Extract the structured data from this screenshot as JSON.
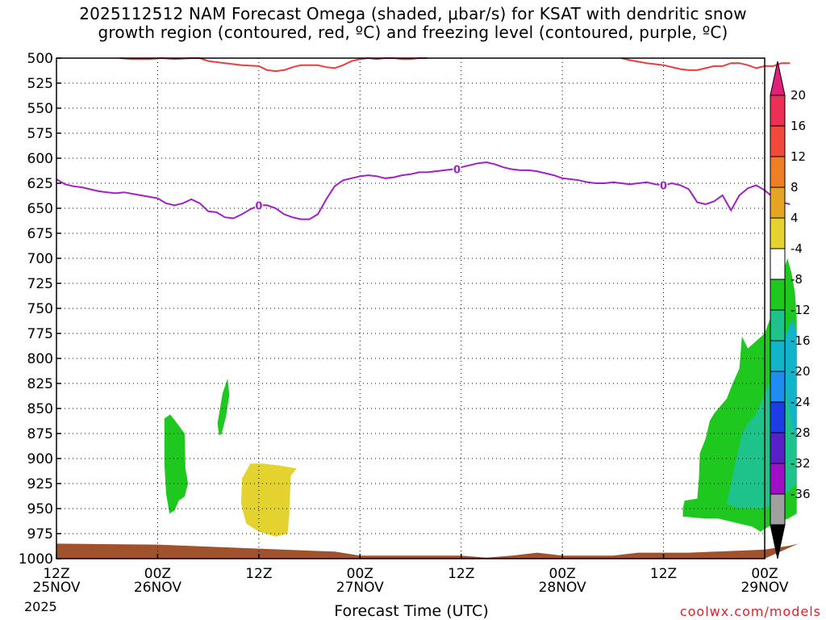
{
  "title_line1": "2025112512 NAM Forecast Omega (shaded, μbar/s) for KSAT with dendritic snow",
  "title_line2": "growth region (contoured, red, ºC) and freezing level (contoured, purple, ºC)",
  "credit": "coolwx.com/models",
  "chart_data": {
    "type": "time-height",
    "xlabel": "Forecast Time (UTC)",
    "x_ticks": [
      {
        "hour": 0,
        "line1": "12Z",
        "line2": "25NOV",
        "line3": "2025"
      },
      {
        "hour": 12,
        "line1": "00Z",
        "line2": "26NOV"
      },
      {
        "hour": 24,
        "line1": "12Z",
        "line2": ""
      },
      {
        "hour": 36,
        "line1": "00Z",
        "line2": "27NOV"
      },
      {
        "hour": 48,
        "line1": "12Z",
        "line2": ""
      },
      {
        "hour": 60,
        "line1": "00Z",
        "line2": "28NOV"
      },
      {
        "hour": 72,
        "line1": "12Z",
        "line2": ""
      },
      {
        "hour": 84,
        "line1": "00Z",
        "line2": "29NOV"
      }
    ],
    "y_ticks": [
      500,
      525,
      550,
      575,
      600,
      625,
      650,
      675,
      700,
      725,
      750,
      775,
      800,
      825,
      850,
      875,
      900,
      925,
      950,
      975,
      1000
    ],
    "ylim": [
      500,
      1000
    ],
    "colorbar": {
      "labels": [
        "20",
        "16",
        "12",
        "8",
        "4",
        "-4",
        "-8",
        "-12",
        "-16",
        "-20",
        "-24",
        "-28",
        "-32",
        "-36"
      ],
      "colors": [
        "#ec2f55",
        "#f04a3a",
        "#ee7f25",
        "#e6a425",
        "#e4d22e",
        "#ffffff",
        "#1ec81e",
        "#1ec38c",
        "#11b4c8",
        "#1e8cf0",
        "#1e3ce6",
        "#5a20c8",
        "#9f0fc8",
        "#a0a0a0"
      ],
      "top_color": "#e0207a",
      "bottom_color": "#000000"
    },
    "freezing_level": {
      "color": "#a020c8",
      "label": "0",
      "points": [
        [
          0,
          621
        ],
        [
          1,
          626
        ],
        [
          2,
          628
        ],
        [
          3,
          629
        ],
        [
          5,
          633
        ],
        [
          7,
          635
        ],
        [
          8,
          634
        ],
        [
          10,
          637
        ],
        [
          12,
          640
        ],
        [
          13,
          645
        ],
        [
          14,
          647
        ],
        [
          15,
          645
        ],
        [
          16,
          641
        ],
        [
          17,
          645
        ],
        [
          18,
          653
        ],
        [
          19,
          654
        ],
        [
          20,
          659
        ],
        [
          21,
          660
        ],
        [
          22,
          656
        ],
        [
          23,
          651
        ],
        [
          24,
          647
        ],
        [
          25,
          647
        ],
        [
          26,
          650
        ],
        [
          27,
          656
        ],
        [
          28,
          659
        ],
        [
          29,
          661
        ],
        [
          30,
          661
        ],
        [
          31,
          656
        ],
        [
          32,
          641
        ],
        [
          33,
          628
        ],
        [
          34,
          622
        ],
        [
          36,
          618
        ],
        [
          37,
          617
        ],
        [
          38,
          618
        ],
        [
          39,
          620
        ],
        [
          40,
          619
        ],
        [
          41,
          617
        ],
        [
          42,
          616
        ],
        [
          43,
          614
        ],
        [
          44,
          614
        ],
        [
          45,
          613
        ],
        [
          46,
          612
        ],
        [
          47,
          611
        ],
        [
          48,
          609
        ],
        [
          49,
          607
        ],
        [
          50,
          605
        ],
        [
          51,
          604
        ],
        [
          52,
          606
        ],
        [
          53,
          609
        ],
        [
          54,
          611
        ],
        [
          55,
          612
        ],
        [
          56,
          612
        ],
        [
          57,
          613
        ],
        [
          58,
          615
        ],
        [
          59,
          617
        ],
        [
          60,
          620
        ],
        [
          61,
          621
        ],
        [
          62,
          622
        ],
        [
          63,
          624
        ],
        [
          64,
          625
        ],
        [
          65,
          625
        ],
        [
          66,
          624
        ],
        [
          67,
          625
        ],
        [
          68,
          626
        ],
        [
          69,
          625
        ],
        [
          70,
          624
        ],
        [
          71,
          626
        ],
        [
          72,
          627
        ],
        [
          73,
          625
        ],
        [
          74,
          627
        ],
        [
          75,
          631
        ],
        [
          76,
          644
        ],
        [
          77,
          646
        ],
        [
          78,
          643
        ],
        [
          79,
          637
        ],
        [
          80,
          652
        ],
        [
          81,
          637
        ],
        [
          82,
          630
        ],
        [
          83,
          627
        ],
        [
          84,
          632
        ],
        [
          85,
          639
        ],
        [
          86,
          644
        ],
        [
          87,
          646
        ]
      ]
    },
    "dgz_contour": {
      "color": "#ef3b3b",
      "points": [
        [
          7.5,
          500
        ],
        [
          9,
          501
        ],
        [
          11,
          501
        ],
        [
          12.5,
          500
        ],
        [
          14,
          501
        ],
        [
          16,
          500
        ],
        [
          17,
          500
        ],
        [
          18,
          503
        ],
        [
          20,
          505
        ],
        [
          22,
          507
        ],
        [
          24,
          508
        ],
        [
          25,
          512
        ],
        [
          26,
          513
        ],
        [
          27,
          512
        ],
        [
          28,
          509
        ],
        [
          29,
          507
        ],
        [
          31,
          507
        ],
        [
          32,
          509
        ],
        [
          33,
          510
        ],
        [
          34,
          507
        ],
        [
          35,
          503
        ],
        [
          36,
          501
        ],
        [
          37,
          500
        ],
        [
          38,
          501
        ],
        [
          39,
          500
        ],
        [
          40,
          500
        ],
        [
          41,
          501
        ],
        [
          42,
          501
        ],
        [
          43,
          500
        ],
        [
          44,
          500
        ]
      ]
    },
    "dgz_contour2": {
      "points": [
        [
          67,
          500
        ],
        [
          68,
          502
        ],
        [
          70,
          505
        ],
        [
          72,
          507
        ],
        [
          74,
          511
        ],
        [
          75,
          512
        ],
        [
          76,
          512
        ],
        [
          77,
          510
        ],
        [
          78,
          508
        ],
        [
          79,
          508
        ],
        [
          80,
          505
        ],
        [
          81,
          505
        ],
        [
          82,
          507
        ],
        [
          83,
          510
        ],
        [
          84,
          508
        ],
        [
          85,
          508
        ],
        [
          86,
          505
        ],
        [
          87,
          505
        ]
      ]
    },
    "omega_regions": [
      {
        "value_class": "-4 to -8",
        "color": "#1ec81e",
        "points": [
          [
            12.8,
            860
          ],
          [
            13.5,
            856
          ],
          [
            14.5,
            867
          ],
          [
            15.2,
            875
          ],
          [
            15.3,
            910
          ],
          [
            15.6,
            925
          ],
          [
            15.2,
            938
          ],
          [
            14.5,
            942
          ],
          [
            14,
            952
          ],
          [
            13.4,
            955
          ],
          [
            13,
            935
          ],
          [
            12.8,
            905
          ]
        ]
      },
      {
        "value_class": "-4 to -8",
        "color": "#1ec81e",
        "points": [
          [
            19.7,
            835
          ],
          [
            20.3,
            820
          ],
          [
            20.5,
            837
          ],
          [
            20.1,
            858
          ],
          [
            19.6,
            875
          ],
          [
            19.3,
            877
          ],
          [
            19.1,
            865
          ]
        ]
      },
      {
        "value_class": "4 to 8",
        "color": "#e4d22e",
        "points": [
          [
            22,
            920
          ],
          [
            23,
            905
          ],
          [
            24.5,
            905
          ],
          [
            26.5,
            907
          ],
          [
            28.5,
            910
          ],
          [
            27.8,
            917
          ],
          [
            27.6,
            958
          ],
          [
            27.4,
            975
          ],
          [
            26,
            978
          ],
          [
            24,
            973
          ],
          [
            22.5,
            965
          ],
          [
            21.9,
            945
          ]
        ]
      },
      {
        "value_class": "-4 to -8",
        "color": "#1ec81e",
        "points": [
          [
            74.3,
            950
          ],
          [
            74.5,
            942
          ],
          [
            76,
            940
          ],
          [
            76.2,
            920
          ],
          [
            76.3,
            895
          ],
          [
            77,
            880
          ],
          [
            77.5,
            862
          ],
          [
            78,
            855
          ],
          [
            79.5,
            840
          ],
          [
            80.2,
            825
          ],
          [
            81,
            810
          ],
          [
            81.3,
            778
          ],
          [
            82,
            790
          ],
          [
            84,
            775
          ],
          [
            85,
            752
          ],
          [
            86,
            718
          ],
          [
            86.7,
            700
          ],
          [
            87.2,
            715
          ],
          [
            87.6,
            735
          ],
          [
            87.8,
            760
          ],
          [
            87.8,
            930
          ],
          [
            87.8,
            955
          ],
          [
            86.8,
            960
          ],
          [
            85.8,
            963
          ],
          [
            84.5,
            968
          ],
          [
            83.5,
            973
          ],
          [
            82.5,
            968
          ],
          [
            81,
            965
          ],
          [
            79.5,
            962
          ],
          [
            78.5,
            960
          ],
          [
            77,
            960
          ],
          [
            74.3,
            958
          ]
        ]
      },
      {
        "value_class": "-8 to -12",
        "color": "#1ec38c",
        "points": [
          [
            79.5,
            945
          ],
          [
            80,
            925
          ],
          [
            80.5,
            905
          ],
          [
            81.3,
            875
          ],
          [
            82,
            865
          ],
          [
            83,
            855
          ],
          [
            84,
            835
          ],
          [
            85,
            818
          ],
          [
            86,
            800
          ],
          [
            86.5,
            785
          ],
          [
            87,
            775
          ],
          [
            87.6,
            765
          ],
          [
            87.8,
            790
          ],
          [
            87.8,
            925
          ],
          [
            86.5,
            935
          ],
          [
            85,
            945
          ],
          [
            84,
            950
          ],
          [
            82.5,
            950
          ],
          [
            81,
            950
          ]
        ]
      },
      {
        "value_class": "-12 to -16",
        "color": "#11b4c8",
        "points": [
          [
            85.2,
            800
          ],
          [
            86,
            787
          ],
          [
            86.8,
            770
          ],
          [
            87.3,
            760
          ],
          [
            87.8,
            775
          ],
          [
            87.8,
            880
          ],
          [
            87.2,
            865
          ],
          [
            86.5,
            830
          ]
        ]
      }
    ],
    "terrain": {
      "color": "#a0522d",
      "points": [
        [
          0,
          985
        ],
        [
          12,
          986
        ],
        [
          18,
          988
        ],
        [
          24,
          990
        ],
        [
          30,
          992
        ],
        [
          33,
          993
        ],
        [
          36,
          997
        ],
        [
          42,
          997
        ],
        [
          48,
          997
        ],
        [
          51,
          999
        ],
        [
          54,
          997
        ],
        [
          57,
          994
        ],
        [
          60,
          997
        ],
        [
          66,
          997
        ],
        [
          69,
          994
        ],
        [
          75,
          994
        ],
        [
          81,
          992
        ],
        [
          84,
          991
        ],
        [
          87,
          987
        ],
        [
          88,
          985
        ]
      ]
    }
  }
}
